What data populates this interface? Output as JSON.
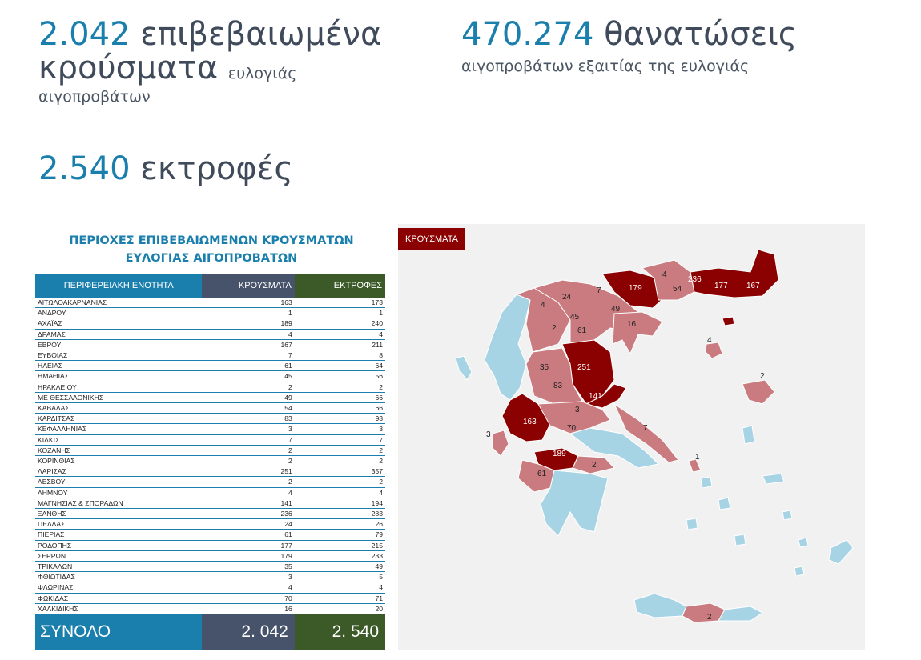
{
  "stats": {
    "cases_number": "2.042",
    "cases_word": "επιβεβαιωμένα",
    "cases_word2": "κρούσματα",
    "cases_small": "ευλογιάς",
    "cases_sub": "αιγοπροβάτων",
    "deaths_number": "470.274",
    "deaths_word": "θανατώσεις",
    "deaths_sub": "αιγοπροβάτων εξαιτίας της ευλογιάς",
    "farms_number": "2.540",
    "farms_word": "εκτροφές"
  },
  "table": {
    "title_line1": "ΠΕΡΙΟΧΕΣ ΕΠΙΒΕΒΑΙΩΜΕΝΩΝ ΚΡΟΥΣΜΑΤΩΝ",
    "title_line2": "ΕΥΛΟΓΙΑΣ ΑΙΓΟΠΡΟΒΑΤΩΝ",
    "headers": [
      "ΠΕΡΙΦΕΡΕΙΑΚΗ ΕΝΟΤΗΤΑ",
      "ΚΡΟΥΣΜΑΤΑ",
      "ΕΚΤΡΟΦΕΣ"
    ],
    "rows": [
      {
        "name": "ΑΙΤΩΛΟΑΚΑΡΝΑΝΙΑΣ",
        "cases": "163",
        "farms": "173"
      },
      {
        "name": "ΑΝΔΡΟΥ",
        "cases": "1",
        "farms": "1"
      },
      {
        "name": "ΑΧΑΪΑΣ",
        "cases": "189",
        "farms": "240"
      },
      {
        "name": "ΔΡΑΜΑΣ",
        "cases": "4",
        "farms": "4"
      },
      {
        "name": "ΕΒΡΟΥ",
        "cases": "167",
        "farms": "211"
      },
      {
        "name": "ΕΥΒΟΙΑΣ",
        "cases": "7",
        "farms": "8"
      },
      {
        "name": "ΗΛΕΙΑΣ",
        "cases": "61",
        "farms": "64"
      },
      {
        "name": "ΗΜΑΘΙΑΣ",
        "cases": "45",
        "farms": "56"
      },
      {
        "name": "ΗΡΑΚΛΕΙΟΥ",
        "cases": "2",
        "farms": "2"
      },
      {
        "name": "ΜΕ ΘΕΣΣΑΛΟΝΙΚΗΣ",
        "cases": "49",
        "farms": "66"
      },
      {
        "name": "ΚΑΒΑΛΑΣ",
        "cases": "54",
        "farms": "66"
      },
      {
        "name": "ΚΑΡΔΙΤΣΑΣ",
        "cases": "83",
        "farms": "93"
      },
      {
        "name": "ΚΕΦΑΛΛΗΝΙΑΣ",
        "cases": "3",
        "farms": "3"
      },
      {
        "name": "ΚΙΛΚΙΣ",
        "cases": "7",
        "farms": "7"
      },
      {
        "name": "ΚΟΖΑΝΗΣ",
        "cases": "2",
        "farms": "2"
      },
      {
        "name": "ΚΟΡΙΝΘΙΑΣ",
        "cases": "2",
        "farms": "2"
      },
      {
        "name": "ΛΑΡΙΣΑΣ",
        "cases": "251",
        "farms": "357"
      },
      {
        "name": "ΛΕΣΒΟΥ",
        "cases": "2",
        "farms": "2"
      },
      {
        "name": "ΛΗΜΝΟΥ",
        "cases": "4",
        "farms": "4"
      },
      {
        "name": "ΜΑΓΝΗΣΙΑΣ & ΣΠΟΡΑΔΩΝ",
        "cases": "141",
        "farms": "194"
      },
      {
        "name": "ΞΑΝΘΗΣ",
        "cases": "236",
        "farms": "283"
      },
      {
        "name": "ΠΕΛΛΑΣ",
        "cases": "24",
        "farms": "26"
      },
      {
        "name": "ΠΙΕΡΙΑΣ",
        "cases": "61",
        "farms": "79"
      },
      {
        "name": "ΡΟΔΟΠΗΣ",
        "cases": "177",
        "farms": "215"
      },
      {
        "name": "ΣΕΡΡΩΝ",
        "cases": "179",
        "farms": "233"
      },
      {
        "name": "ΤΡΙΚΑΛΩΝ",
        "cases": "35",
        "farms": "49"
      },
      {
        "name": "ΦΘΙΩΤΙΔΑΣ",
        "cases": "3",
        "farms": "5"
      },
      {
        "name": "ΦΛΩΡΙΝΑΣ",
        "cases": "4",
        "farms": "4"
      },
      {
        "name": "ΦΩΚΙΔΑΣ",
        "cases": "70",
        "farms": "71"
      },
      {
        "name": "ΧΑΛΚΙΔΙΚΗΣ",
        "cases": "16",
        "farms": "20"
      }
    ],
    "total_label": "ΣΥΝΟΛΟ",
    "total_cases": "2. 042",
    "total_farms": "2. 540"
  },
  "map": {
    "legend": "ΚΡΟΥΣΜΑΤΑ",
    "colors": {
      "high": "#8b0000",
      "medium": "#c97b7f",
      "none": "#a7d4e4",
      "border": "#ffffff",
      "sea": "#f1f1f1"
    },
    "region_values": [
      {
        "name": "ΣΕΡΡΩΝ",
        "value": "179",
        "level": "high"
      },
      {
        "name": "ΔΡΑΜΑΣ",
        "value": "4",
        "level": "medium"
      },
      {
        "name": "ΚΑΒΑΛΑΣ",
        "value": "54",
        "level": "medium"
      },
      {
        "name": "ΞΑΝΘΗΣ",
        "value": "236",
        "level": "high"
      },
      {
        "name": "ΡΟΔΟΠΗΣ",
        "value": "177",
        "level": "high"
      },
      {
        "name": "ΕΒΡΟΥ",
        "value": "167",
        "level": "high"
      },
      {
        "name": "ΚΙΛΚΙΣ",
        "value": "7",
        "level": "medium"
      },
      {
        "name": "ΠΕΛΛΑΣ",
        "value": "24",
        "level": "medium"
      },
      {
        "name": "ΦΛΩΡΙΝΑΣ",
        "value": "4",
        "level": "medium"
      },
      {
        "name": "ΜΕ ΘΕΣΣΑΛΟΝΙΚΗΣ",
        "value": "49",
        "level": "medium"
      },
      {
        "name": "ΗΜΑΘΙΑΣ",
        "value": "45",
        "level": "medium"
      },
      {
        "name": "ΚΟΖΑΝΗΣ",
        "value": "2",
        "level": "medium"
      },
      {
        "name": "ΠΙΕΡΙΑΣ",
        "value": "61",
        "level": "medium"
      },
      {
        "name": "ΧΑΛΚΙΔΙΚΗΣ",
        "value": "16",
        "level": "medium"
      },
      {
        "name": "ΛΗΜΝΟΥ",
        "value": "4",
        "level": "medium"
      },
      {
        "name": "ΛΑΡΙΣΑΣ",
        "value": "251",
        "level": "high"
      },
      {
        "name": "ΤΡΙΚΑΛΩΝ",
        "value": "35",
        "level": "medium"
      },
      {
        "name": "ΚΑΡΔΙΤΣΑΣ",
        "value": "83",
        "level": "medium"
      },
      {
        "name": "ΜΑΓΝΗΣΙΑΣ & ΣΠΟΡΑΔΩΝ",
        "value": "141",
        "level": "high"
      },
      {
        "name": "ΛΕΣΒΟΥ",
        "value": "2",
        "level": "medium"
      },
      {
        "name": "ΑΙΤΩΛΟΑΚΑΡΝΑΝΙΑΣ",
        "value": "163",
        "level": "high"
      },
      {
        "name": "ΦΘΙΩΤΙΔΑΣ",
        "value": "3",
        "level": "medium"
      },
      {
        "name": "ΦΩΚΙΔΑΣ",
        "value": "70",
        "level": "medium"
      },
      {
        "name": "ΕΥΒΟΙΑΣ",
        "value": "7",
        "level": "medium"
      },
      {
        "name": "ΚΕΦΑΛΛΗΝΙΑΣ",
        "value": "3",
        "level": "medium"
      },
      {
        "name": "ΑΧΑΪΑΣ",
        "value": "189",
        "level": "high"
      },
      {
        "name": "ΚΟΡΙΝΘΙΑΣ",
        "value": "2",
        "level": "medium"
      },
      {
        "name": "ΗΛΕΙΑΣ",
        "value": "61",
        "level": "medium"
      },
      {
        "name": "ΑΝΔΡΟΥ",
        "value": "1",
        "level": "medium"
      },
      {
        "name": "ΗΡΑΚΛΕΙΟΥ",
        "value": "2",
        "level": "medium"
      }
    ]
  }
}
